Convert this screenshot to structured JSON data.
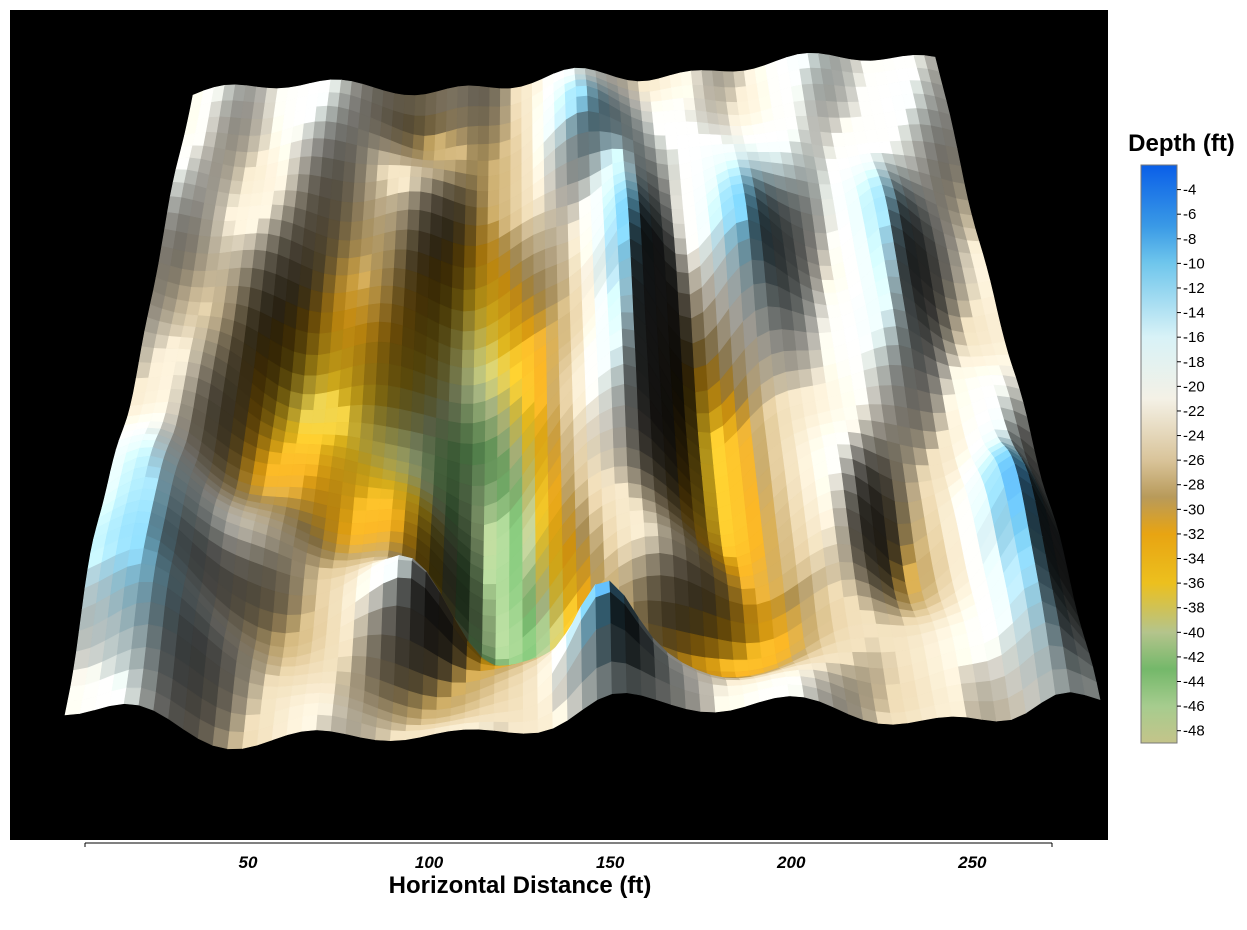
{
  "chart_data": {
    "type": "heatmap",
    "subtype": "3d-surface",
    "title": "",
    "xlabel": "Horizontal Distance (ft)",
    "ylabel": "",
    "x_ticks": [
      50,
      100,
      150,
      200,
      250
    ],
    "xlim": [
      5,
      272
    ],
    "colorbar": {
      "title": "Depth (ft)",
      "ticks": [
        -4,
        -6,
        -8,
        -10,
        -12,
        -14,
        -16,
        -18,
        -20,
        -22,
        -24,
        -26,
        -28,
        -30,
        -32,
        -34,
        -36,
        -38,
        -40,
        -42,
        -44,
        -46,
        -48
      ],
      "range": [
        -2,
        -49
      ],
      "colors": [
        {
          "depth": -2,
          "color": "#0a5fe8"
        },
        {
          "depth": -7,
          "color": "#3a9ae6"
        },
        {
          "depth": -10,
          "color": "#6fc6ec"
        },
        {
          "depth": -16,
          "color": "#d8f2f7"
        },
        {
          "depth": -21,
          "color": "#f4f1e6"
        },
        {
          "depth": -26,
          "color": "#d9c49a"
        },
        {
          "depth": -29,
          "color": "#b89a5a"
        },
        {
          "depth": -32,
          "color": "#e8a412"
        },
        {
          "depth": -36,
          "color": "#ecc01e"
        },
        {
          "depth": -40,
          "color": "#b4c48c"
        },
        {
          "depth": -43,
          "color": "#74b86a"
        },
        {
          "depth": -46,
          "color": "#a6cc8e"
        },
        {
          "depth": -49,
          "color": "#c4c48a"
        }
      ]
    }
  }
}
